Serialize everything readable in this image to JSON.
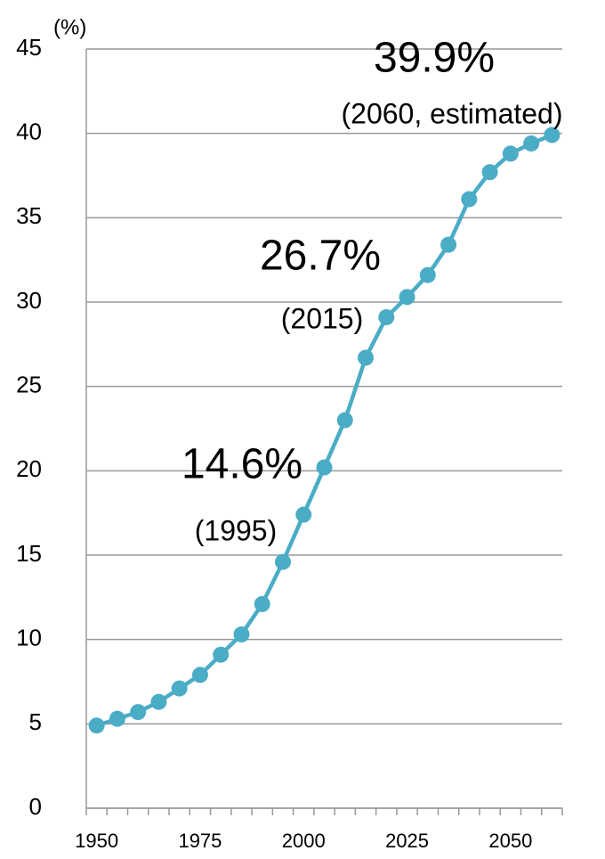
{
  "chart_data": {
    "type": "line",
    "y_unit": "(%)",
    "categories": [
      "1950",
      null,
      null,
      null,
      null,
      "1975",
      null,
      null,
      null,
      null,
      "2000",
      null,
      null,
      null,
      null,
      "2025",
      null,
      null,
      null,
      null,
      "2050",
      null,
      null
    ],
    "series": [
      {
        "color": "#4bacc6",
        "values": [
          4.9,
          5.3,
          5.7,
          6.3,
          7.1,
          7.9,
          9.1,
          10.3,
          12.1,
          14.6,
          17.4,
          20.2,
          23.0,
          26.7,
          29.1,
          30.3,
          31.6,
          33.4,
          36.1,
          37.7,
          38.8,
          39.4,
          39.9
        ]
      }
    ],
    "ylim": [
      0,
      45
    ],
    "yticks": [
      0,
      5,
      10,
      15,
      20,
      25,
      30,
      35,
      40,
      45
    ],
    "grid": true,
    "annotations": [
      {
        "value": "39.9%",
        "note": "(2060, estimated)"
      },
      {
        "value": "26.7%",
        "note": "(2015)"
      },
      {
        "value": "14.6%",
        "note": "(1995)"
      }
    ]
  }
}
